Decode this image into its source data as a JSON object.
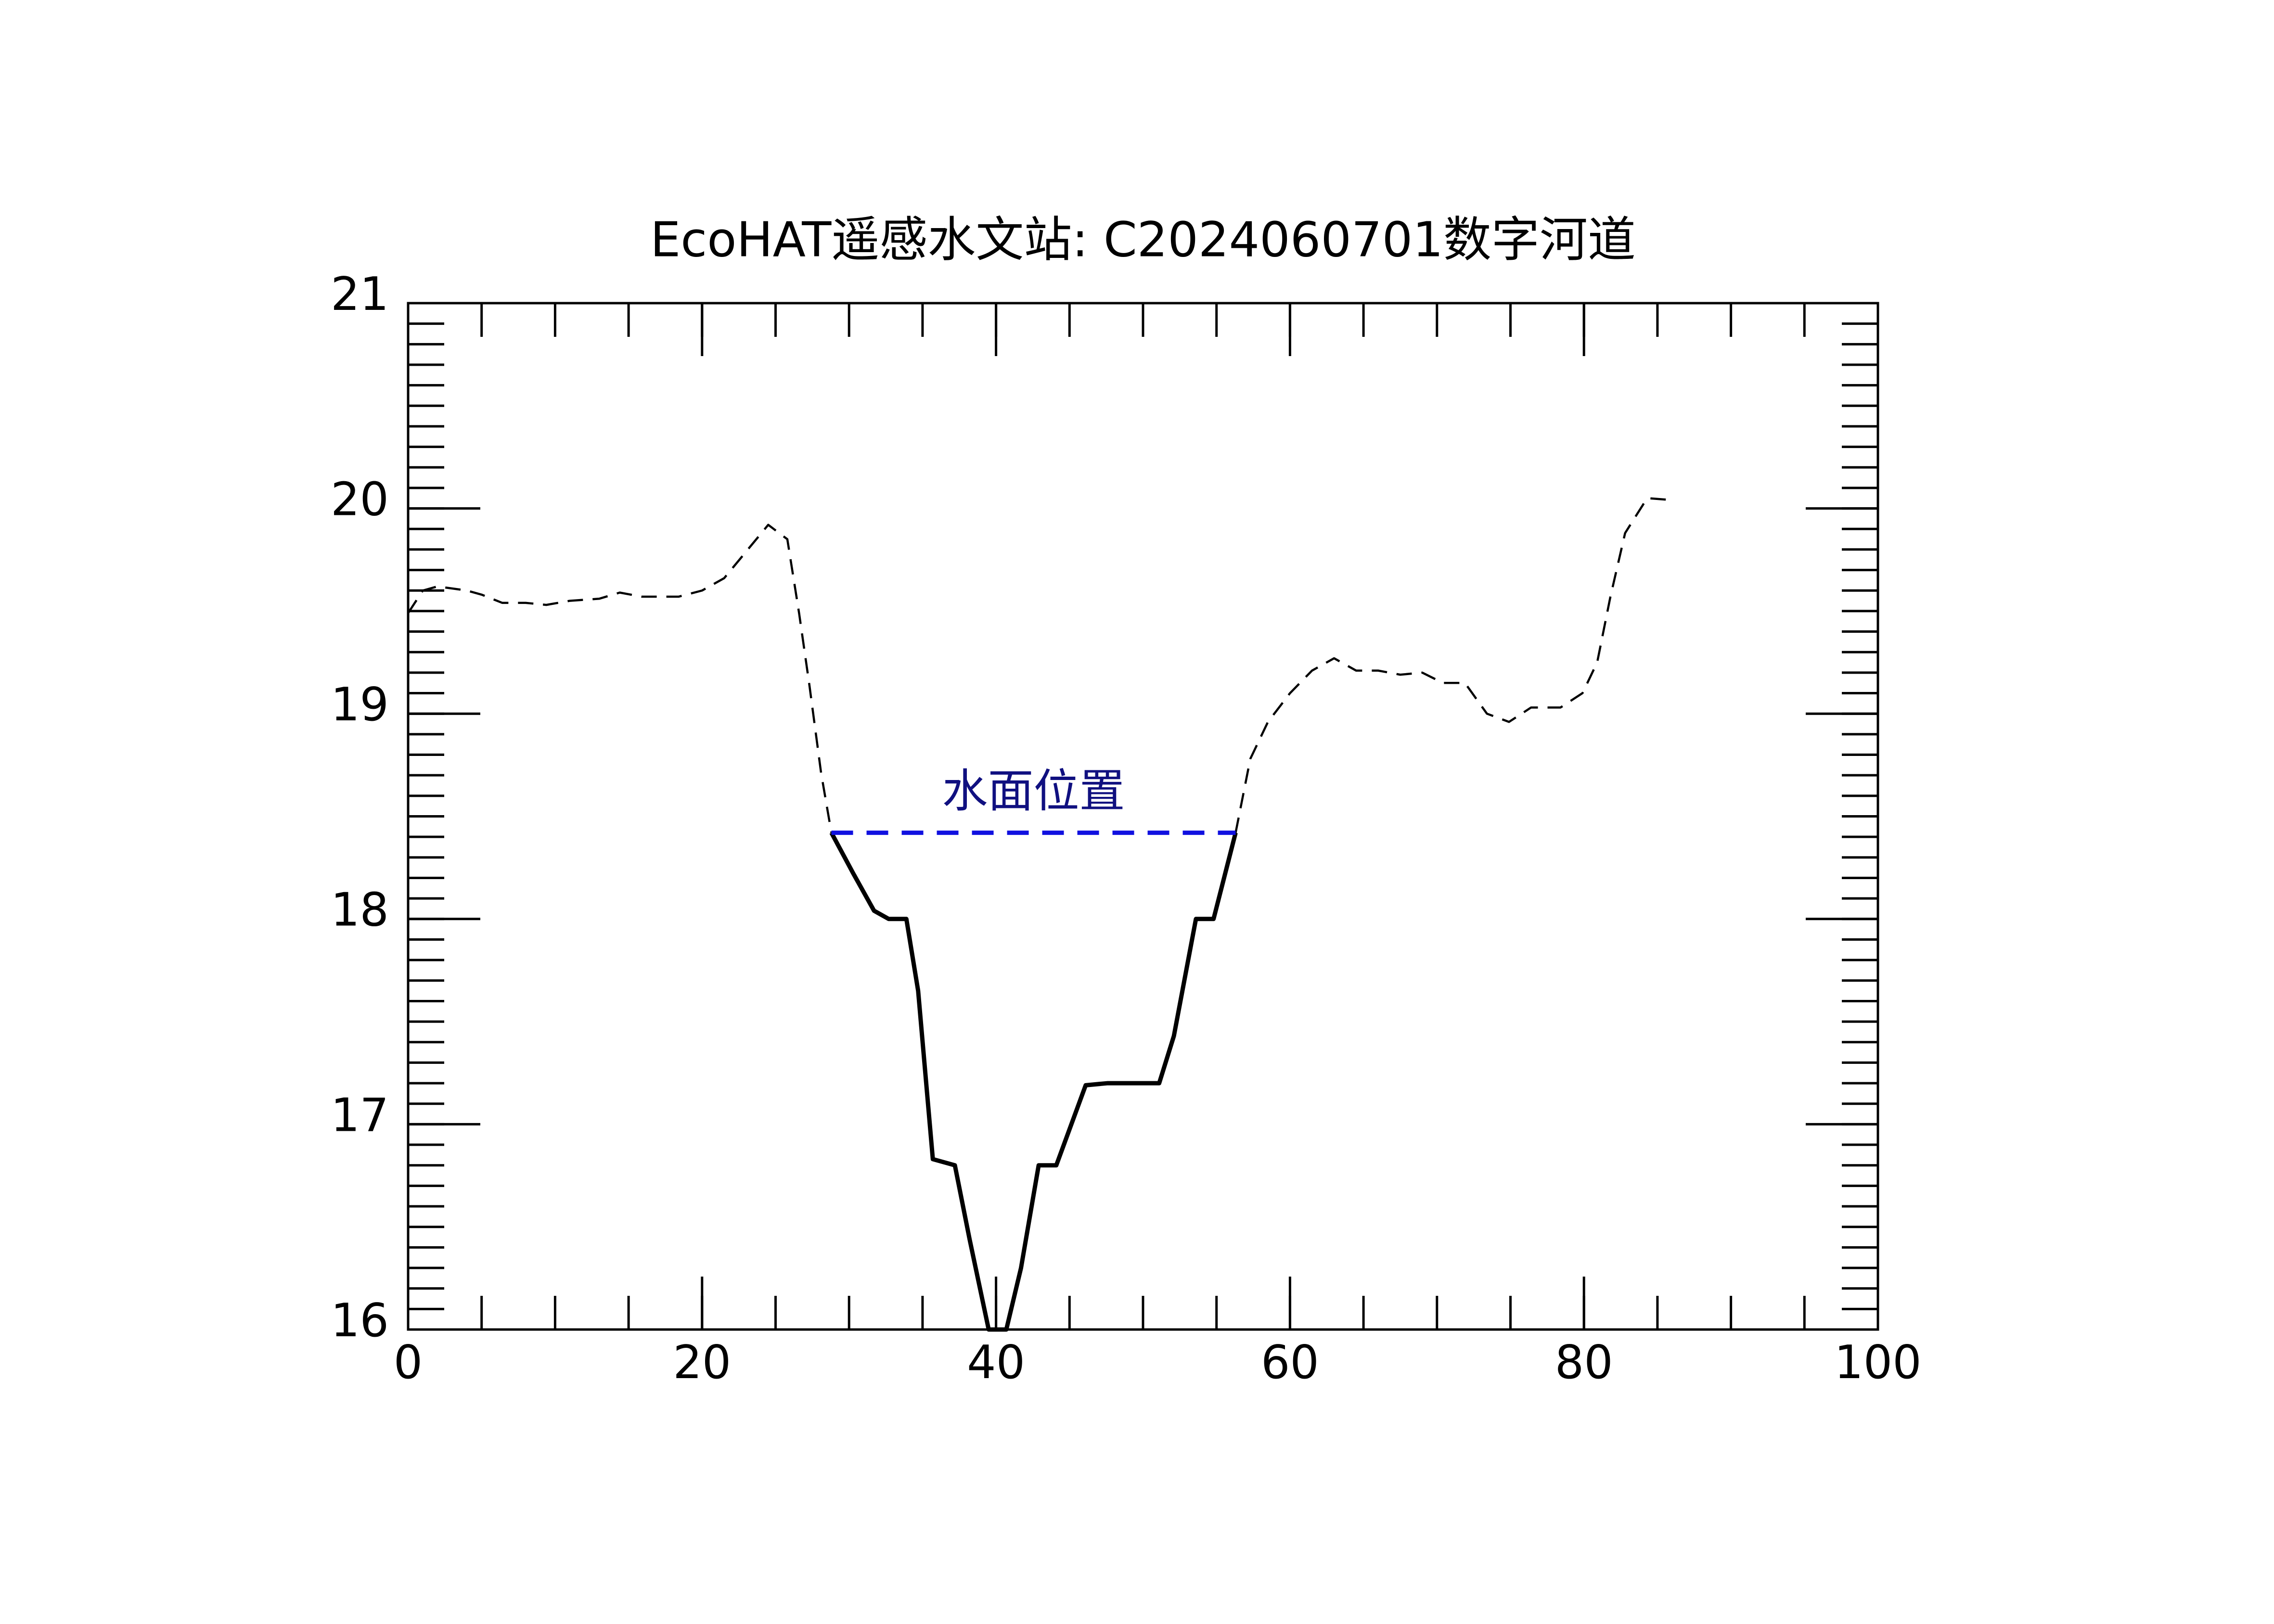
{
  "chart_data": {
    "type": "line",
    "title": "EcoHAT遥感水文站: C2024060701数字河道",
    "xlim": [
      0,
      100
    ],
    "xticks": [
      0,
      20,
      40,
      60,
      80,
      100
    ],
    "xminor": 5,
    "ylim": [
      16,
      21
    ],
    "yticks": [
      16,
      17,
      18,
      19,
      20,
      21
    ],
    "yminor": 0.1,
    "series": [
      {
        "color": "#000000",
        "style": "dashed",
        "x": [
          0,
          1,
          2,
          4,
          5,
          6.4,
          8,
          9.4,
          11,
          13,
          14.4,
          15.9,
          18.4,
          20,
          21.5,
          23,
          24.5,
          25.8,
          26.6,
          27.3,
          28.1,
          28.8
        ],
        "values": [
          19.49,
          19.6,
          19.62,
          19.6,
          19.58,
          19.54,
          19.54,
          19.53,
          19.55,
          19.56,
          19.59,
          19.57,
          19.57,
          19.6,
          19.66,
          19.79,
          19.92,
          19.85,
          19.49,
          19.14,
          18.71,
          18.42
        ]
      },
      {
        "color": "#000000",
        "style": "solid",
        "x": [
          28.8,
          30.3,
          31.7,
          32.7,
          33.9,
          34.7,
          35.7,
          37.2,
          38.2,
          39.5,
          40.7,
          41.7,
          42.9,
          44.1,
          46.1,
          47.6,
          51.1,
          52.1,
          53.6,
          54.8,
          56.3
        ],
        "values": [
          18.42,
          18.22,
          18.04,
          18.0,
          18.0,
          17.65,
          16.83,
          16.8,
          16.44,
          16.0,
          16.0,
          16.3,
          16.8,
          16.8,
          17.19,
          17.2,
          17.2,
          17.43,
          18.0,
          18.0,
          18.42
        ]
      },
      {
        "color": "#000000",
        "style": "dashed",
        "x": [
          56.3,
          57.3,
          58.5,
          60,
          61.5,
          63,
          64.5,
          66,
          67.5,
          69,
          70.4,
          71.9,
          73.4,
          74.9,
          76.4,
          78.4,
          79.9,
          80.9,
          81.8,
          82.8,
          84.3,
          86.1
        ],
        "values": [
          18.42,
          18.78,
          18.96,
          19.1,
          19.21,
          19.27,
          19.21,
          19.21,
          19.19,
          19.2,
          19.15,
          19.15,
          19.0,
          18.96,
          19.03,
          19.03,
          19.1,
          19.25,
          19.57,
          19.88,
          20.05,
          20.04
        ]
      },
      {
        "color": "#1010e0",
        "style": "water",
        "x": [
          28.8,
          56.3
        ],
        "values": [
          18.42,
          18.42
        ]
      }
    ],
    "annotation": {
      "text": "水面位置",
      "color": "#101080"
    }
  }
}
